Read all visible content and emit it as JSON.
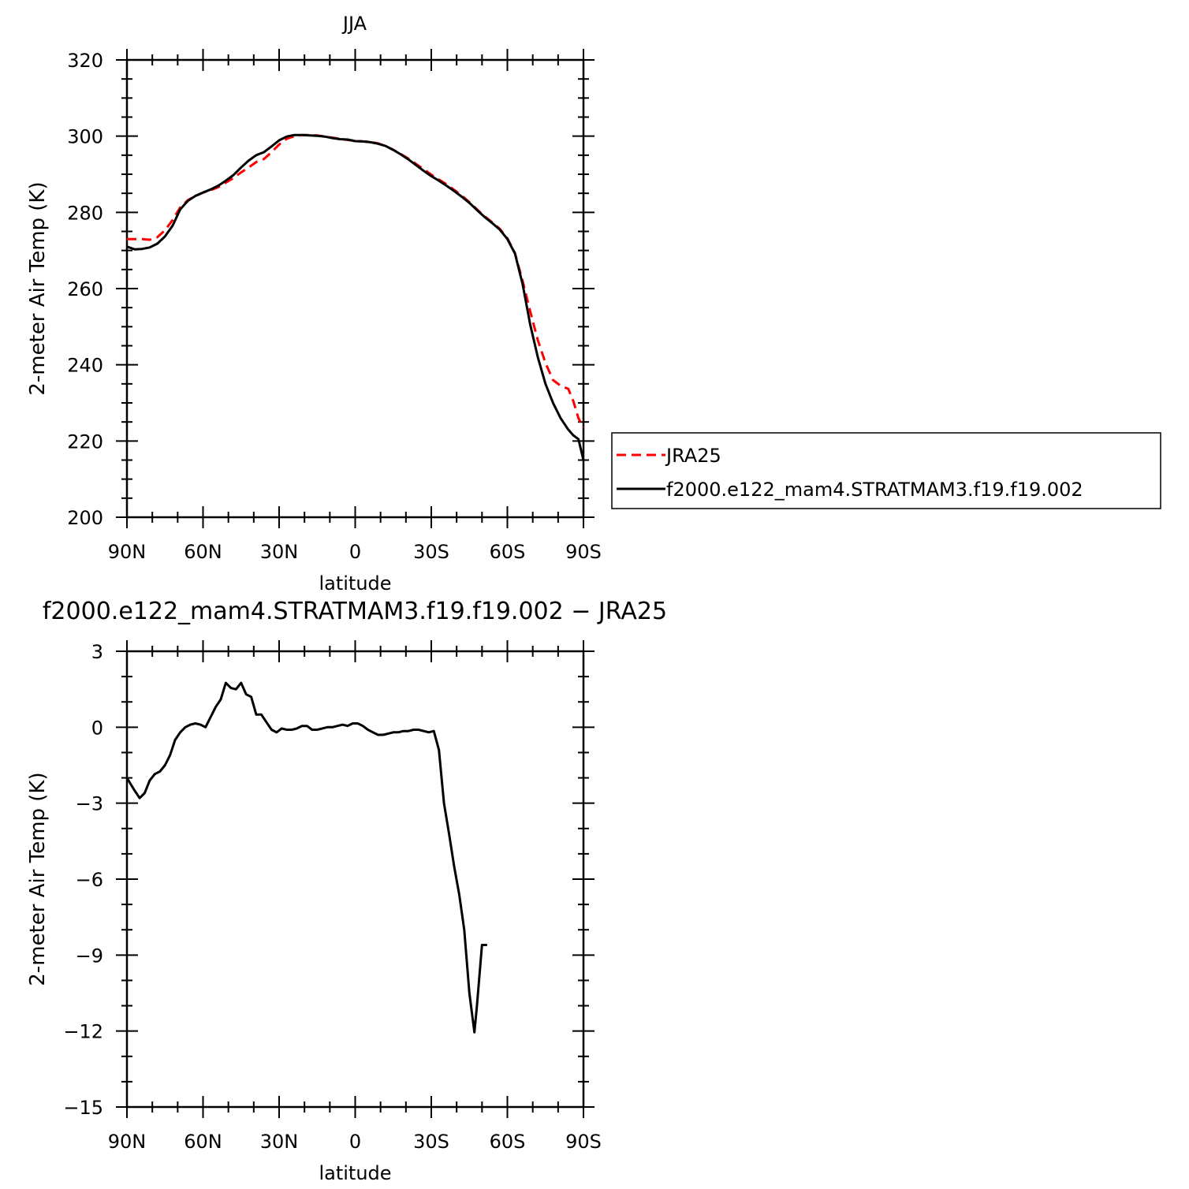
{
  "chart_data": [
    {
      "type": "line",
      "title": "JJA",
      "xlabel": "latitude",
      "ylabel": "2-meter Air Temp (K)",
      "xlim": [
        90,
        -90
      ],
      "ylim": [
        200,
        320
      ],
      "x_ticks": [
        {
          "value": 90,
          "label": "90N"
        },
        {
          "value": 60,
          "label": "60N"
        },
        {
          "value": 30,
          "label": "30N"
        },
        {
          "value": 0,
          "label": "0"
        },
        {
          "value": -30,
          "label": "30S"
        },
        {
          "value": -60,
          "label": "60S"
        },
        {
          "value": -90,
          "label": "90S"
        }
      ],
      "y_ticks": [
        200,
        220,
        240,
        260,
        280,
        300,
        320
      ],
      "legend_position": "right",
      "series": [
        {
          "name": "JRA25",
          "color": "#ff0000",
          "dash": "dashed",
          "points": [
            [
              90,
              273.0
            ],
            [
              87,
              273.0
            ],
            [
              84,
              273.0
            ],
            [
              81,
              272.8
            ],
            [
              78,
              273.5
            ],
            [
              75,
              275.3
            ],
            [
              72,
              278.0
            ],
            [
              69,
              281.3
            ],
            [
              66,
              283.2
            ],
            [
              63,
              284.3
            ],
            [
              60,
              285.2
            ],
            [
              57,
              285.8
            ],
            [
              54,
              286.6
            ],
            [
              51,
              287.8
            ],
            [
              48,
              289.0
            ],
            [
              45,
              290.5
            ],
            [
              42,
              291.8
            ],
            [
              39,
              293.2
            ],
            [
              36,
              294.0
            ],
            [
              33,
              295.8
            ],
            [
              30,
              297.8
            ],
            [
              27,
              299.3
            ],
            [
              24,
              300.0
            ],
            [
              21,
              300.3
            ],
            [
              18,
              300.3
            ],
            [
              15,
              300.2
            ],
            [
              12,
              299.9
            ],
            [
              9,
              299.6
            ],
            [
              6,
              299.3
            ],
            [
              3,
              299.0
            ],
            [
              0,
              298.8
            ],
            [
              -3,
              298.6
            ],
            [
              -6,
              298.5
            ],
            [
              -9,
              298.1
            ],
            [
              -12,
              297.4
            ],
            [
              -15,
              296.4
            ],
            [
              -18,
              295.3
            ],
            [
              -21,
              294.1
            ],
            [
              -24,
              292.7
            ],
            [
              -27,
              291.3
            ],
            [
              -30,
              289.9
            ],
            [
              -33,
              288.6
            ],
            [
              -36,
              287.4
            ],
            [
              -39,
              285.9
            ],
            [
              -42,
              284.4
            ],
            [
              -45,
              282.7
            ],
            [
              -48,
              280.8
            ],
            [
              -51,
              279.0
            ],
            [
              -54,
              277.4
            ],
            [
              -57,
              275.7
            ],
            [
              -60,
              273.2
            ],
            [
              -63,
              269.3
            ],
            [
              -66,
              262.0
            ],
            [
              -69,
              254.0
            ],
            [
              -72,
              246.5
            ],
            [
              -75,
              240.5
            ],
            [
              -78,
              236.0
            ],
            [
              -81,
              234.5
            ],
            [
              -84,
              233.7
            ],
            [
              -86,
              230.5
            ],
            [
              -88,
              226.0
            ],
            [
              -90,
              223.5
            ]
          ]
        },
        {
          "name": "f2000.e122_mam4.STRATMAM3.f19.f19.002",
          "color": "#000000",
          "dash": "solid",
          "points": [
            [
              90,
              271.0
            ],
            [
              87,
              270.3
            ],
            [
              84,
              270.4
            ],
            [
              81,
              270.8
            ],
            [
              78,
              271.8
            ],
            [
              75,
              273.7
            ],
            [
              72,
              276.5
            ],
            [
              69,
              280.8
            ],
            [
              66,
              283.0
            ],
            [
              63,
              284.3
            ],
            [
              60,
              285.2
            ],
            [
              57,
              286.0
            ],
            [
              54,
              287.0
            ],
            [
              51,
              288.3
            ],
            [
              48,
              289.8
            ],
            [
              45,
              291.8
            ],
            [
              42,
              293.6
            ],
            [
              39,
              295.0
            ],
            [
              36,
              295.8
            ],
            [
              33,
              297.3
            ],
            [
              30,
              298.9
            ],
            [
              27,
              299.9
            ],
            [
              24,
              300.3
            ],
            [
              21,
              300.3
            ],
            [
              18,
              300.2
            ],
            [
              15,
              300.1
            ],
            [
              12,
              299.9
            ],
            [
              9,
              299.5
            ],
            [
              6,
              299.2
            ],
            [
              3,
              299.1
            ],
            [
              0,
              298.7
            ],
            [
              -3,
              298.6
            ],
            [
              -6,
              298.4
            ],
            [
              -9,
              298.0
            ],
            [
              -12,
              297.4
            ],
            [
              -15,
              296.4
            ],
            [
              -18,
              295.2
            ],
            [
              -21,
              293.9
            ],
            [
              -24,
              292.4
            ],
            [
              -27,
              290.9
            ],
            [
              -30,
              289.5
            ],
            [
              -33,
              288.3
            ],
            [
              -36,
              287.0
            ],
            [
              -39,
              285.6
            ],
            [
              -42,
              284.1
            ],
            [
              -45,
              282.5
            ],
            [
              -48,
              280.6
            ],
            [
              -51,
              278.8
            ],
            [
              -54,
              277.2
            ],
            [
              -57,
              275.5
            ],
            [
              -60,
              273.0
            ],
            [
              -63,
              269.2
            ],
            [
              -66,
              261.2
            ],
            [
              -69,
              250.5
            ],
            [
              -72,
              242.0
            ],
            [
              -75,
              235.0
            ],
            [
              -78,
              230.0
            ],
            [
              -81,
              226.0
            ],
            [
              -84,
              223.0
            ],
            [
              -86,
              221.5
            ],
            [
              -88,
              220.5
            ],
            [
              -90,
              215.0
            ]
          ]
        }
      ]
    },
    {
      "type": "line",
      "title": "f2000.e122_mam4.STRATMAM3.f19.f19.002  −  JRA25",
      "xlabel": "latitude",
      "ylabel": "2-meter Air Temp (K)",
      "xlim": [
        90,
        -90
      ],
      "ylim": [
        -15,
        3
      ],
      "x_ticks": [
        {
          "value": 90,
          "label": "90N"
        },
        {
          "value": 60,
          "label": "60N"
        },
        {
          "value": 30,
          "label": "30N"
        },
        {
          "value": 0,
          "label": "0"
        },
        {
          "value": -30,
          "label": "30S"
        },
        {
          "value": -60,
          "label": "60S"
        },
        {
          "value": -90,
          "label": "90S"
        }
      ],
      "y_ticks": [
        {
          "value": -15,
          "label": "−15"
        },
        {
          "value": -12,
          "label": "−12"
        },
        {
          "value": -9,
          "label": "−9"
        },
        {
          "value": -6,
          "label": "−6"
        },
        {
          "value": -3,
          "label": "−3"
        },
        {
          "value": 0,
          "label": "0"
        },
        {
          "value": 3,
          "label": "3"
        }
      ],
      "series": [
        {
          "color": "#000000",
          "dash": "solid",
          "points": [
            [
              90,
              -2.0
            ],
            [
              87,
              -2.5
            ],
            [
              85,
              -2.8
            ],
            [
              83,
              -2.6
            ],
            [
              81,
              -2.1
            ],
            [
              79,
              -1.85
            ],
            [
              77,
              -1.75
            ],
            [
              75,
              -1.5
            ],
            [
              73,
              -1.1
            ],
            [
              71,
              -0.5
            ],
            [
              69,
              -0.2
            ],
            [
              67,
              0.0
            ],
            [
              65,
              0.1
            ],
            [
              63,
              0.15
            ],
            [
              61,
              0.1
            ],
            [
              59,
              0.0
            ],
            [
              57,
              0.4
            ],
            [
              55,
              0.8
            ],
            [
              53,
              1.1
            ],
            [
              51,
              1.75
            ],
            [
              49,
              1.55
            ],
            [
              47,
              1.5
            ],
            [
              45,
              1.75
            ],
            [
              43,
              1.3
            ],
            [
              41,
              1.2
            ],
            [
              39,
              0.5
            ],
            [
              37,
              0.5
            ],
            [
              35,
              0.2
            ],
            [
              33,
              -0.1
            ],
            [
              31,
              -0.2
            ],
            [
              29,
              -0.05
            ],
            [
              27,
              -0.1
            ],
            [
              25,
              -0.1
            ],
            [
              23,
              -0.05
            ],
            [
              21,
              0.05
            ],
            [
              19,
              0.05
            ],
            [
              17,
              -0.1
            ],
            [
              15,
              -0.1
            ],
            [
              13,
              -0.05
            ],
            [
              11,
              0.0
            ],
            [
              9,
              0.0
            ],
            [
              7,
              0.05
            ],
            [
              5,
              0.1
            ],
            [
              3,
              0.05
            ],
            [
              1,
              0.15
            ],
            [
              -1,
              0.15
            ],
            [
              -3,
              0.05
            ],
            [
              -5,
              -0.1
            ],
            [
              -7,
              -0.2
            ],
            [
              -9,
              -0.3
            ],
            [
              -11,
              -0.3
            ],
            [
              -13,
              -0.25
            ],
            [
              -15,
              -0.2
            ],
            [
              -17,
              -0.2
            ],
            [
              -19,
              -0.15
            ],
            [
              -21,
              -0.15
            ],
            [
              -23,
              -0.1
            ],
            [
              -25,
              -0.1
            ],
            [
              -27,
              -0.15
            ],
            [
              -29,
              -0.2
            ],
            [
              -31,
              -0.15
            ],
            [
              -33,
              -0.9
            ],
            [
              -35,
              -3.0
            ],
            [
              -37,
              -4.2
            ],
            [
              -39,
              -5.5
            ],
            [
              -41,
              -6.6
            ],
            [
              -43,
              -8.0
            ],
            [
              -45,
              -10.5
            ],
            [
              -47,
              -12.05
            ],
            [
              -48,
              -11.0
            ],
            [
              -50,
              -8.6
            ],
            [
              -52,
              -8.6
            ]
          ]
        }
      ]
    }
  ]
}
